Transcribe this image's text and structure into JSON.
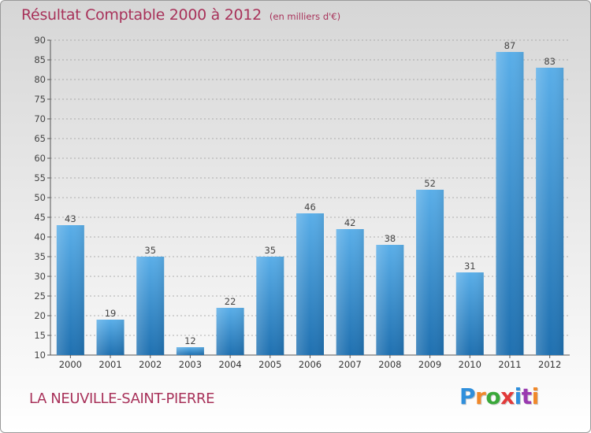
{
  "title": "Résultat Comptable 2000 à 2012",
  "unit": "(en milliers d'€)",
  "place": "LA NEUVILLE-SAINT-PIERRE",
  "brand": {
    "letters": [
      "P",
      "r",
      "o",
      "x",
      "i",
      "t",
      "i"
    ],
    "colors": [
      "#2f8fdc",
      "#f0882a",
      "#3aa83a",
      "#e23a3a",
      "#2f8fdc",
      "#9a3ab0",
      "#f0882a"
    ]
  },
  "colors": {
    "bar_light": "#5aaee8",
    "bar_dark": "#1f70b0",
    "title": "#a8325a",
    "grid": "#999999"
  },
  "chart_data": {
    "type": "bar",
    "title": "Résultat Comptable 2000 à 2012",
    "xlabel": "",
    "ylabel": "",
    "ylim": [
      10,
      90
    ],
    "yticks": [
      10,
      15,
      20,
      25,
      30,
      35,
      40,
      45,
      50,
      55,
      60,
      65,
      70,
      75,
      80,
      85,
      90
    ],
    "grid": true,
    "categories": [
      "2000",
      "2001",
      "2002",
      "2003",
      "2004",
      "2005",
      "2006",
      "2007",
      "2008",
      "2009",
      "2010",
      "2011",
      "2012"
    ],
    "values": [
      43,
      19,
      35,
      12,
      22,
      35,
      46,
      42,
      38,
      52,
      31,
      87,
      83
    ]
  }
}
